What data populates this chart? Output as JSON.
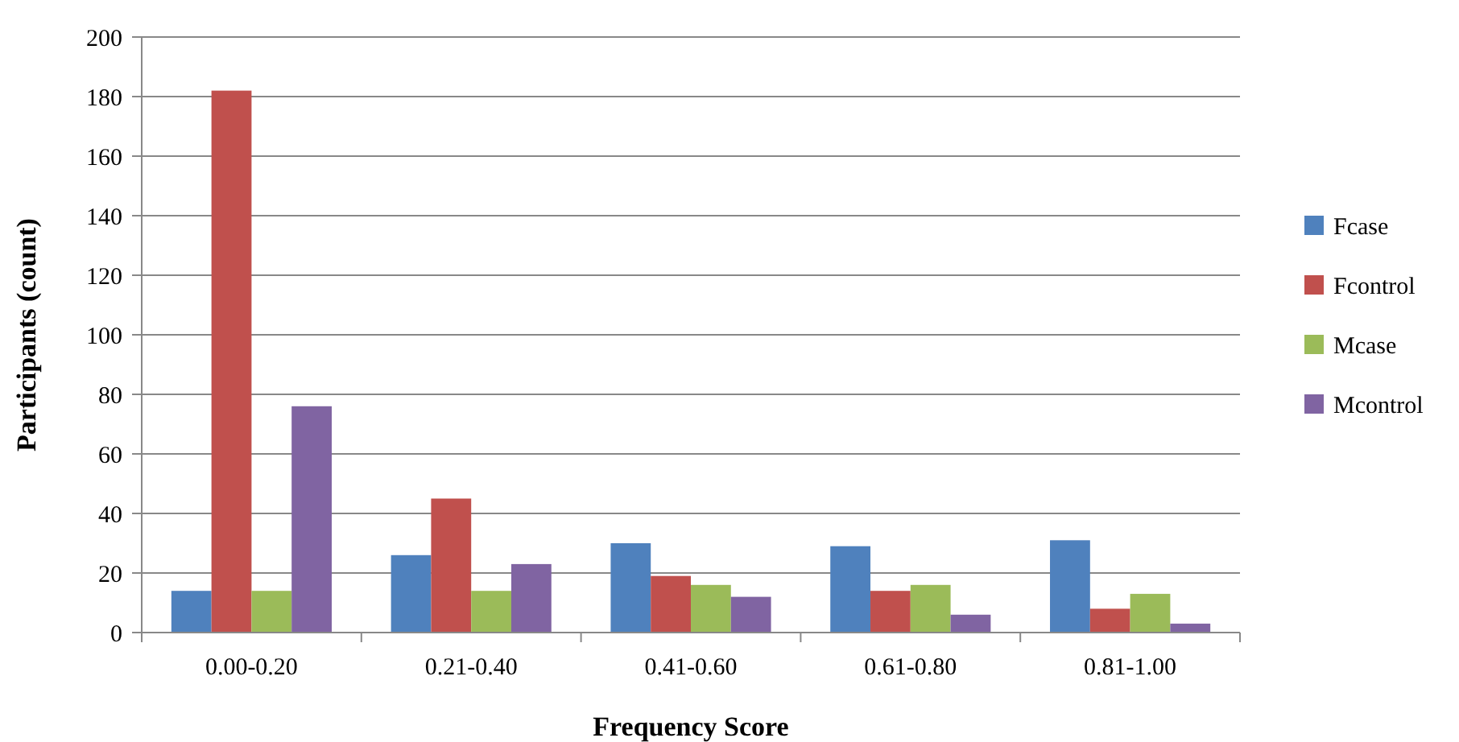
{
  "chart_data": {
    "type": "bar",
    "xlabel": "Frequency Score",
    "ylabel": "Participants (count)",
    "categories": [
      "0.00-0.20",
      "0.21-0.40",
      "0.41-0.60",
      "0.61-0.80",
      "0.81-1.00"
    ],
    "series": [
      {
        "name": "Fcase",
        "color": "#4f81bd",
        "values": [
          14,
          26,
          30,
          29,
          31
        ]
      },
      {
        "name": "Fcontrol",
        "color": "#c0504d",
        "values": [
          182,
          45,
          19,
          14,
          8
        ]
      },
      {
        "name": "Mcase",
        "color": "#9bbb59",
        "values": [
          14,
          14,
          16,
          16,
          13
        ]
      },
      {
        "name": "Mcontrol",
        "color": "#8064a2",
        "values": [
          76,
          23,
          12,
          6,
          3
        ]
      }
    ],
    "ylim": [
      0,
      200
    ],
    "yticks": [
      0,
      20,
      40,
      60,
      80,
      100,
      120,
      140,
      160,
      180,
      200
    ],
    "grid": "y",
    "legend": "right"
  }
}
